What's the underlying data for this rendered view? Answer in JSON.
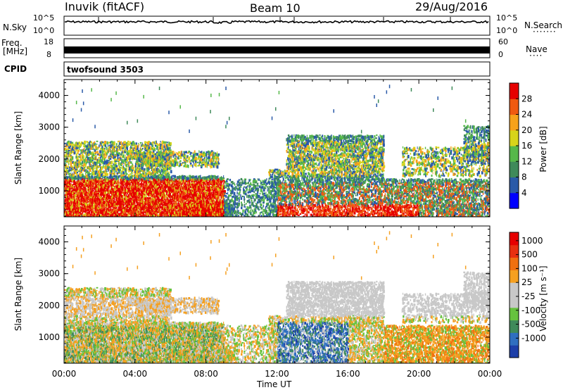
{
  "header": {
    "station": "Inuvik (fitACF)",
    "beam": "Beam 10",
    "date": "29/Aug/2016"
  },
  "noise_panel": {
    "left_label": "N.Sky",
    "right_label": "N.Search",
    "left_ticks": [
      "10^5",
      "10^0"
    ],
    "right_ticks": [
      "10^5",
      "10^0"
    ]
  },
  "freq_panel": {
    "left_label_line1": "Freq.",
    "left_label_line2": "[MHz]",
    "right_label": "Nave",
    "left_ticks": [
      "18",
      "8"
    ],
    "right_ticks": [
      "60",
      "0"
    ]
  },
  "cpid_panel": {
    "label": "CPID",
    "value": "twofsound 3503"
  },
  "chart_data": [
    {
      "type": "heatmap",
      "title": "",
      "ylabel": "Slant Range [km]",
      "xlabel": "Time UT",
      "ylim": [
        180,
        4500
      ],
      "xlim": [
        0,
        24
      ],
      "yticks": [
        "1000",
        "2000",
        "3000",
        "4000"
      ],
      "colorbar_label": "Power [dB]",
      "colorbar_ticks": [
        "4",
        "8",
        "12",
        "16",
        "20",
        "24",
        "28"
      ],
      "colorbar_range": [
        0,
        32
      ],
      "colorbar_colors": [
        "#0000ff",
        "#2a5aa8",
        "#3f8a5a",
        "#56b84a",
        "#d7d41a",
        "#f7a21a",
        "#f05a10",
        "#e60000"
      ]
    },
    {
      "type": "heatmap",
      "title": "",
      "ylabel": "Slant Range [km]",
      "xlabel": "Time UT",
      "ylim": [
        180,
        4500
      ],
      "xlim": [
        0,
        24
      ],
      "yticks": [
        "1000",
        "2000",
        "3000",
        "4000"
      ],
      "colorbar_label": "Velocity [m s⁻¹]",
      "colorbar_ticks": [
        "1000",
        "500",
        "100",
        "25",
        "-25",
        "-100",
        "-500",
        "-1000"
      ],
      "colorbar_colors": [
        "#1d3fa8",
        "#2f6fc0",
        "#3f8a5a",
        "#66c23e",
        "#c8c8c8",
        "#c8c8c8",
        "#f5a020",
        "#f07010",
        "#e83010",
        "#e60000"
      ]
    }
  ],
  "x_axis": {
    "ticks": [
      "00:00",
      "04:00",
      "08:00",
      "12:00",
      "16:00",
      "20:00",
      "00:00"
    ],
    "label": "Time UT"
  },
  "colors": {
    "axis": "#000000",
    "background": "#ffffff"
  }
}
